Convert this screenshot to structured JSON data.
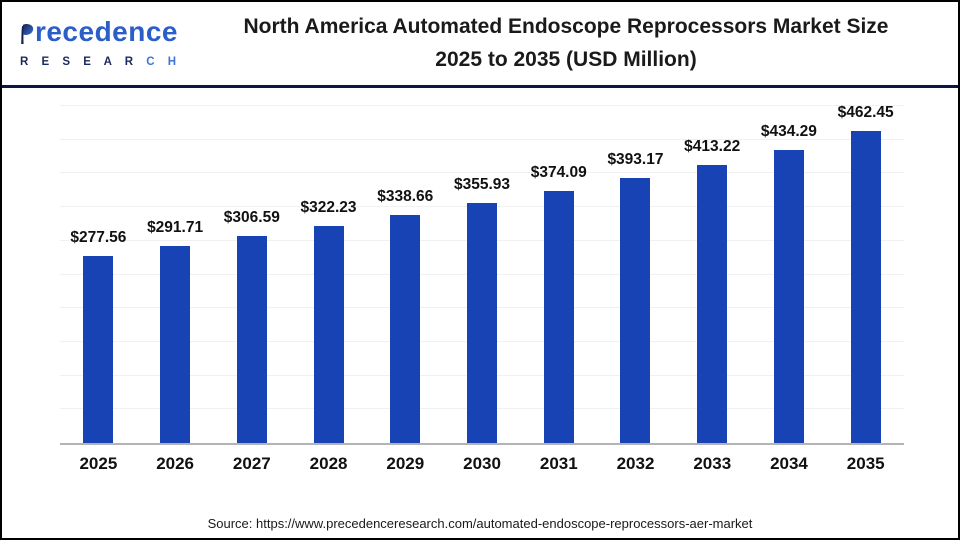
{
  "header": {
    "logo": {
      "brand_rest": "recedence",
      "subbrand_dark": "R E S E A R",
      "subbrand_light": "C H"
    },
    "title_line1": "North America Automated Endoscope Reprocessors Market Size",
    "title_line2": "2025 to 2035 (USD Million)"
  },
  "chart_data": {
    "type": "bar",
    "title": "North America Automated Endoscope Reprocessors Market Size 2025 to 2035 (USD Million)",
    "categories": [
      "2025",
      "2026",
      "2027",
      "2028",
      "2029",
      "2030",
      "2031",
      "2032",
      "2033",
      "2034",
      "2035"
    ],
    "values": [
      277.56,
      291.71,
      306.59,
      322.23,
      338.66,
      355.93,
      374.09,
      393.17,
      413.22,
      434.29,
      462.45
    ],
    "value_prefix": "$",
    "xlabel": "",
    "ylabel": "",
    "ylim": [
      0,
      500
    ],
    "grid_step": 50,
    "grid": true,
    "legend": false,
    "bar_color": "#1843b4"
  },
  "footer": {
    "source": "Source: https://www.precedenceresearch.com/automated-endoscope-reprocessors-aer-market"
  },
  "colors": {
    "bar": "#1843b4",
    "header_divider": "#10173f",
    "axis_line": "#b4b4b4",
    "gridline": "#f1f1f1",
    "brand_navy": "#1b2a5e",
    "brand_blue": "#2b5ec9"
  }
}
